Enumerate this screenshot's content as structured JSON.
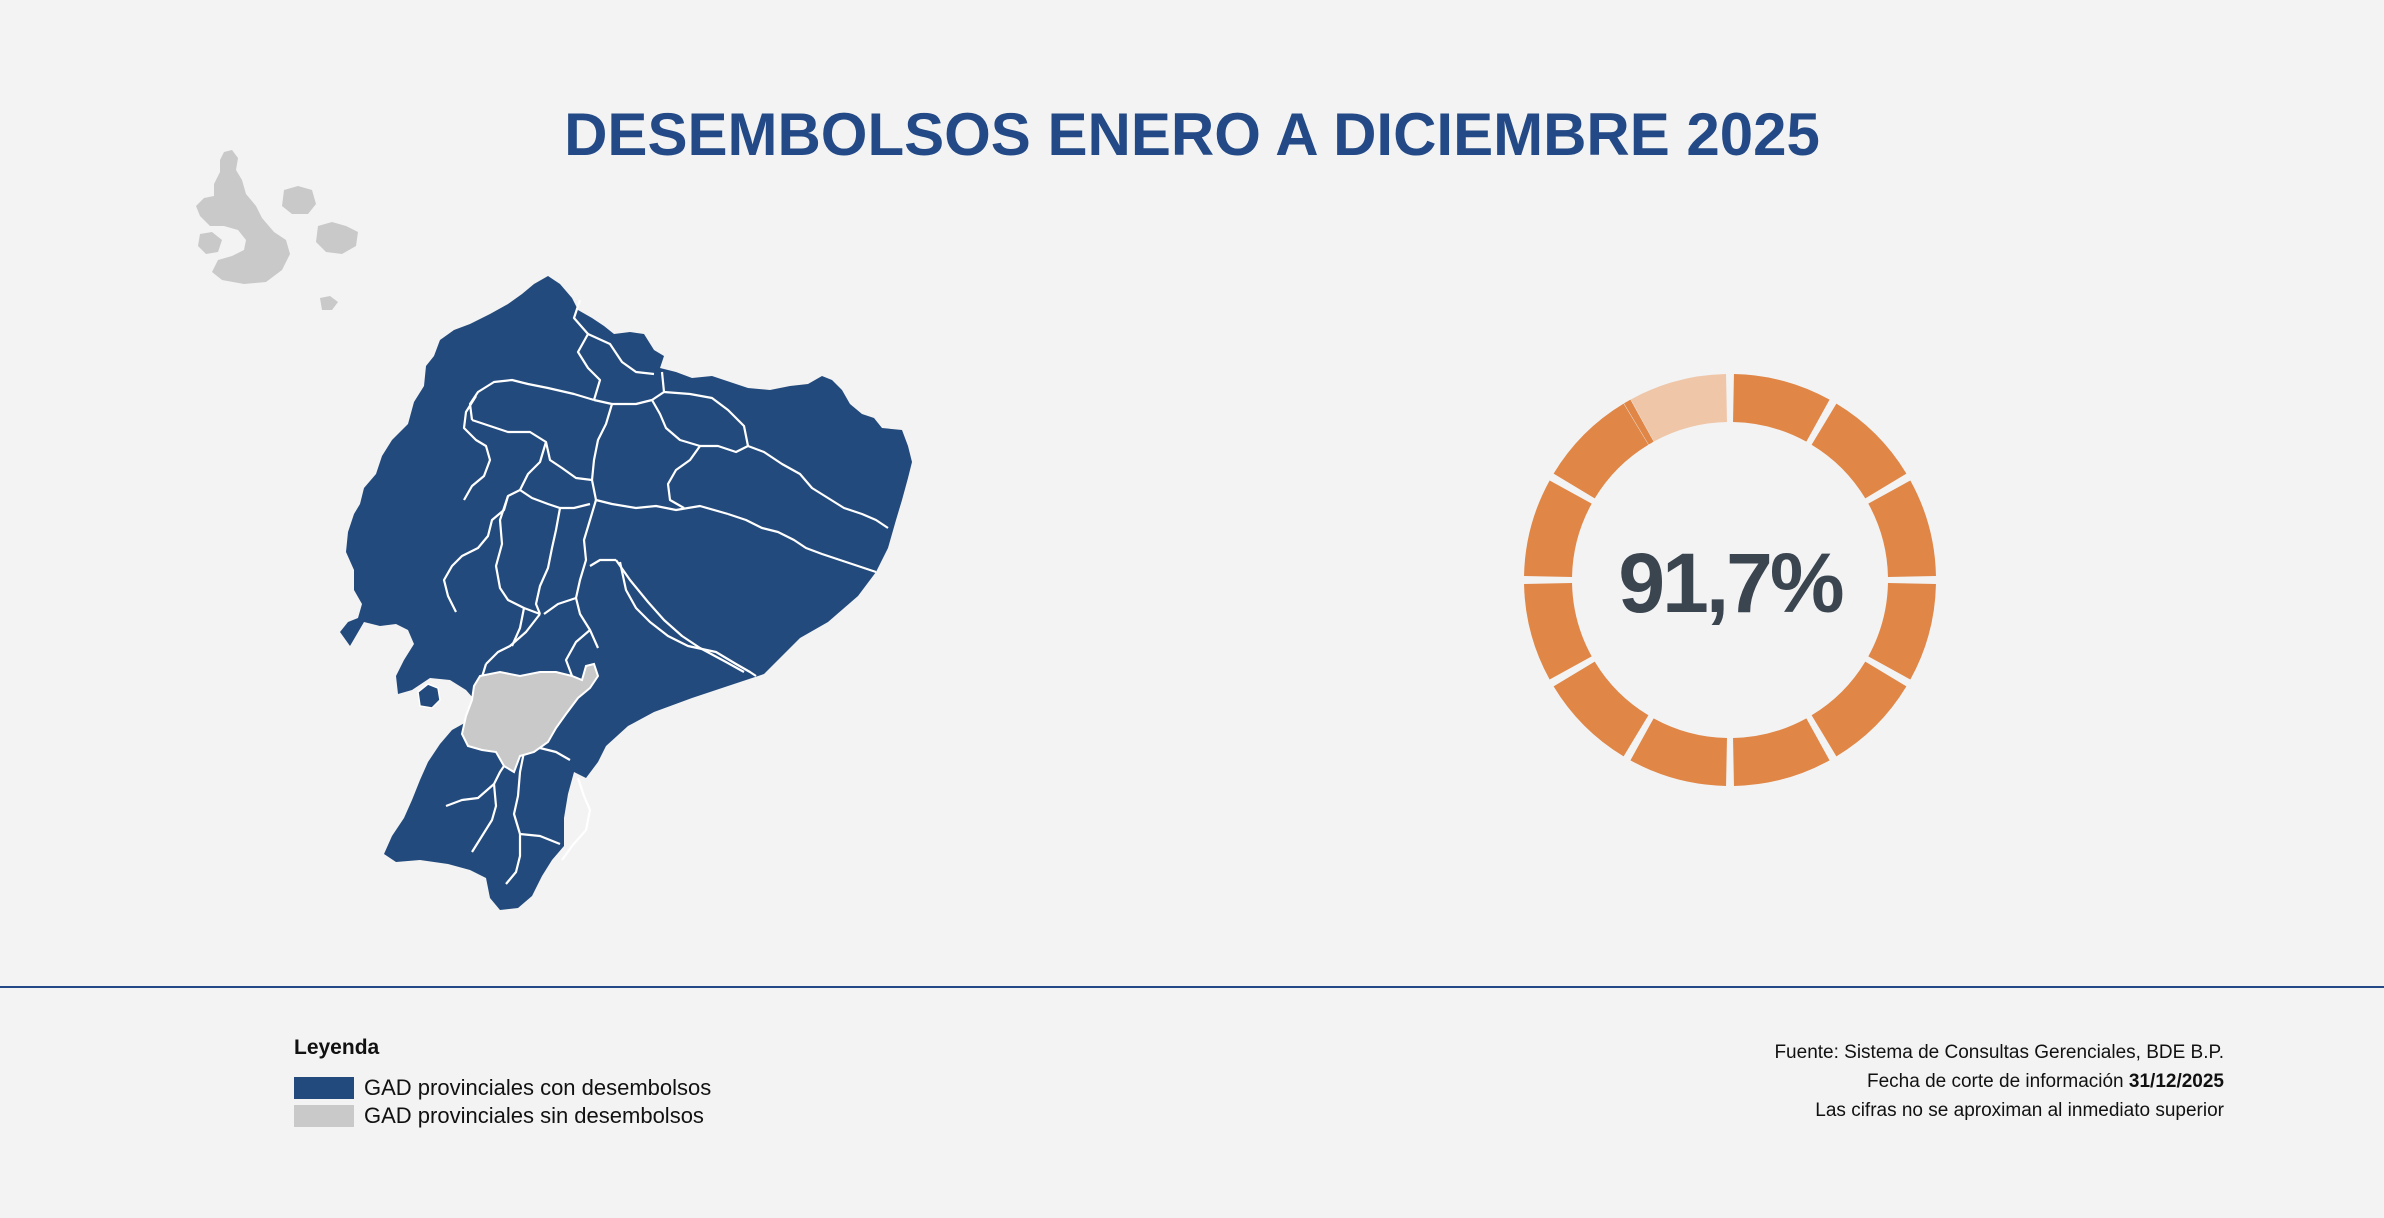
{
  "title": "DESEMBOLSOS ENERO A DICIEMBRE  2025",
  "kpi": {
    "value": "91,7%",
    "fraction": 0.917,
    "segments": 12,
    "filled_segments": 11
  },
  "colors": {
    "title": "#234a86",
    "with_disbursement": "#234a7c",
    "without_disbursement": "#c9c9c9",
    "donut_filled": "#e08646",
    "donut_remaining": "#efc6a8",
    "kpi_text": "#3a4550"
  },
  "legend": {
    "title": "Leyenda",
    "items": [
      {
        "label": "GAD provinciales con desembolsos",
        "color": "#234a7c"
      },
      {
        "label": "GAD provinciales sin desembolsos",
        "color": "#c9c9c9"
      }
    ]
  },
  "source": {
    "line1": "Fuente: Sistema de Consultas Gerenciales, BDE B.P.",
    "line2_prefix": "Fecha de corte de información ",
    "line2_date": "31/12/2025",
    "line3": "Las cifras no se aproximan al inmediato superior"
  }
}
